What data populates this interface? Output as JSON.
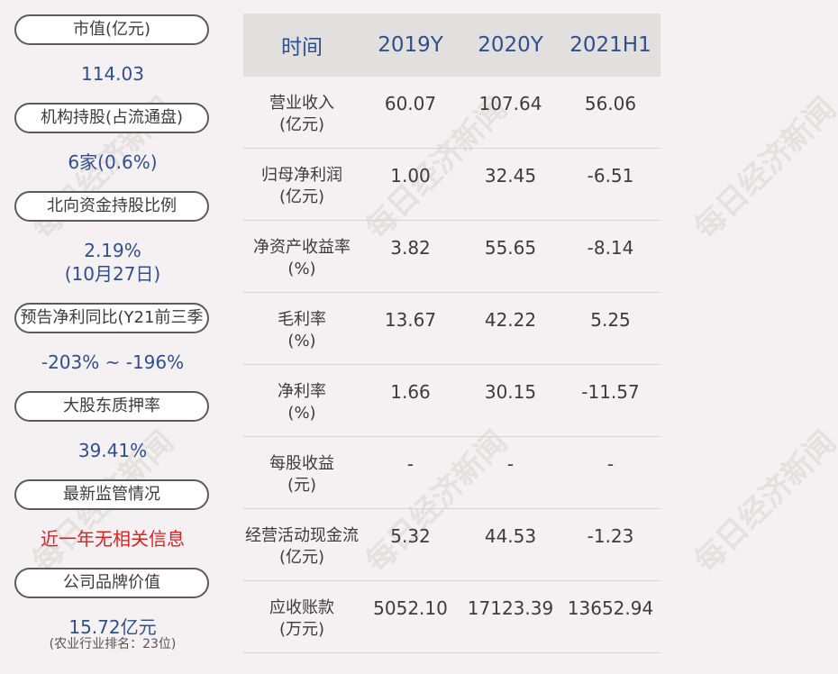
{
  "watermark": "每日经济新闻",
  "left": {
    "market_cap": {
      "label": "市值(亿元)",
      "value": "114.03"
    },
    "institutions": {
      "label": "机构持股(占流通盘)",
      "value": "6家(0.6%)"
    },
    "northbound": {
      "label": "北向资金持股比例",
      "value": "2.19%",
      "date": "(10月27日)"
    },
    "forecast": {
      "label": "预告净利同比(Y21前三季",
      "value": "-203% ~ -196%"
    },
    "pledge": {
      "label": "大股东质押率",
      "value": "39.41%"
    },
    "regulation": {
      "label": "最新监管情况",
      "value": "近一年无相关信息"
    },
    "brand": {
      "label": "公司品牌价值",
      "value": "15.72亿元",
      "note": "(农业行业排名：23位)"
    }
  },
  "table": {
    "headers": [
      "时间",
      "2019Y",
      "2020Y",
      "2021H1"
    ],
    "rows": [
      {
        "name": "营业收入",
        "unit": "(亿元)",
        "values": [
          "60.07",
          "107.64",
          "56.06"
        ]
      },
      {
        "name": "归母净利润",
        "unit": "(亿元)",
        "values": [
          "1.00",
          "32.45",
          "-6.51"
        ]
      },
      {
        "name": "净资产收益率",
        "unit": "(%)",
        "values": [
          "3.82",
          "55.65",
          "-8.14"
        ]
      },
      {
        "name": "毛利率",
        "unit": "(%)",
        "values": [
          "13.67",
          "42.22",
          "5.25"
        ]
      },
      {
        "name": "净利率",
        "unit": "(%)",
        "values": [
          "1.66",
          "30.15",
          "-11.57"
        ]
      },
      {
        "name": "每股收益",
        "unit": "(元)",
        "values": [
          "-",
          "-",
          "-"
        ]
      },
      {
        "name": "经营活动现金流",
        "unit": "(亿元)",
        "values": [
          "5.32",
          "44.53",
          "-1.23"
        ]
      },
      {
        "name": "应收账款",
        "unit": "(万元)",
        "values": [
          "5052.10",
          "17123.39",
          "13652.94"
        ]
      }
    ]
  }
}
